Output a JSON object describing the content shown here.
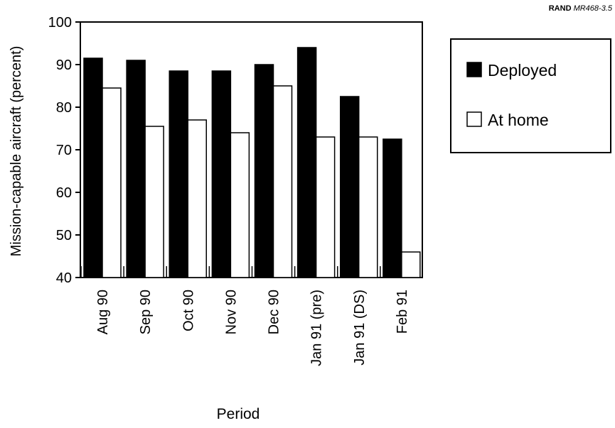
{
  "source_note": {
    "org": "RAND",
    "id": "MR468-3.5"
  },
  "chart_data": {
    "type": "bar",
    "title": "",
    "xlabel": "Period",
    "ylabel": "Mission-capable aircraft (percent)",
    "ylim": [
      40,
      100
    ],
    "yticks": [
      40,
      50,
      60,
      70,
      80,
      90,
      100
    ],
    "grid": false,
    "legend_position": "right",
    "categories": [
      "Aug 90",
      "Sep 90",
      "Oct 90",
      "Nov 90",
      "Dec 90",
      "Jan 91 (pre)",
      "Jan 91 (DS)",
      "Feb 91"
    ],
    "series": [
      {
        "name": "Deployed",
        "color": "#000000",
        "values": [
          91.5,
          91.0,
          88.5,
          88.5,
          90.0,
          94.0,
          82.5,
          72.5
        ]
      },
      {
        "name": "At home",
        "color": "#ffffff",
        "values": [
          84.5,
          75.5,
          77.0,
          74.0,
          85.0,
          73.0,
          73.0,
          46.0
        ]
      }
    ]
  }
}
